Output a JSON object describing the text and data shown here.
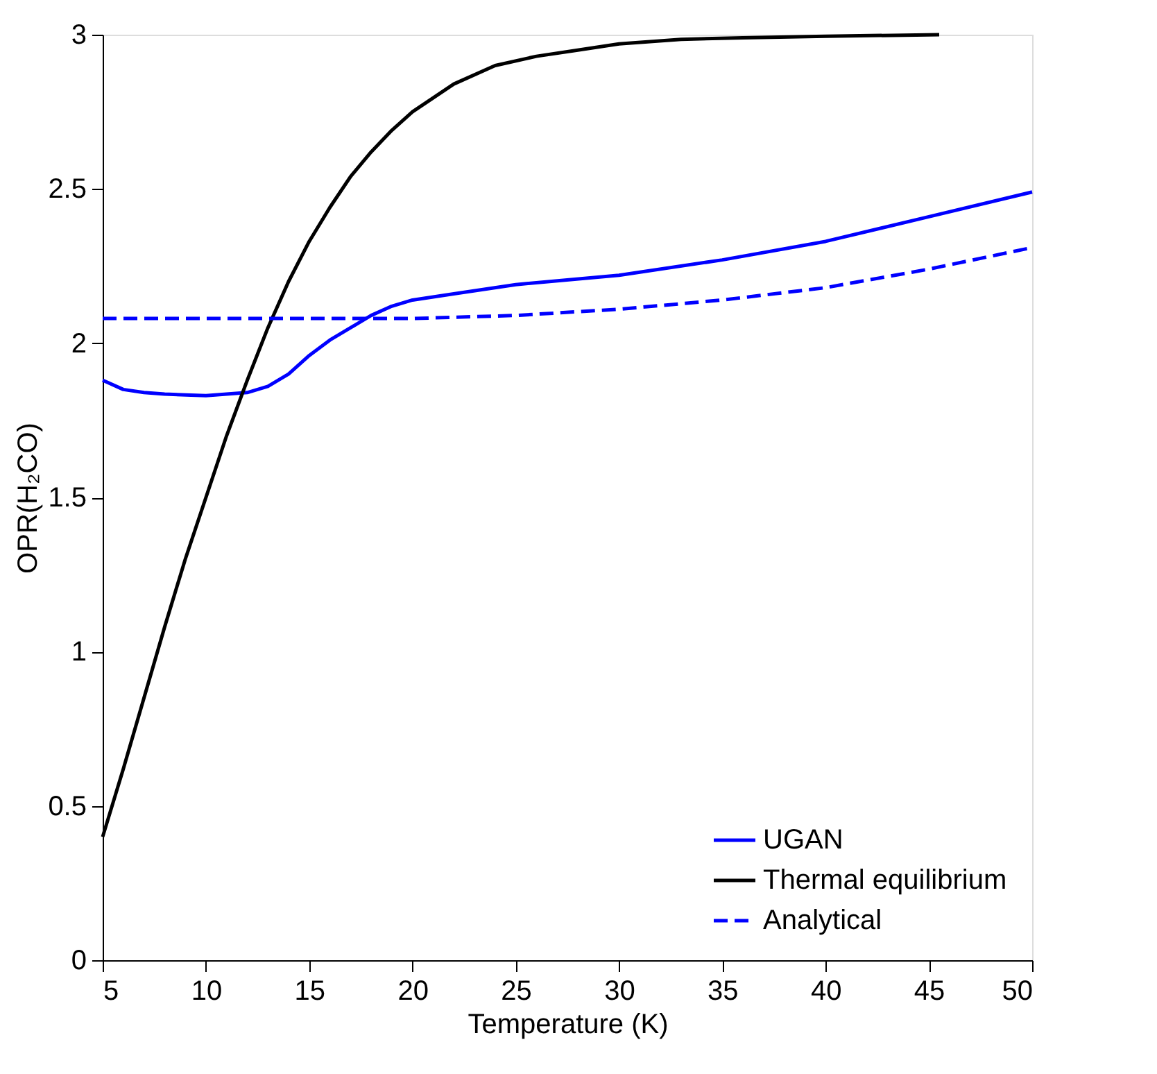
{
  "chart_data": {
    "type": "line",
    "xlabel": "Temperature (K)",
    "ylabel": "OPR(H₂CO)",
    "xlim": [
      5,
      50
    ],
    "xticks": [
      5,
      10,
      15,
      20,
      25,
      30,
      35,
      40,
      45,
      50
    ],
    "ylim": [
      0,
      3
    ],
    "yticks": [
      0,
      0.5,
      1,
      1.5,
      2,
      2.5,
      3
    ],
    "grid": false,
    "legend": "bottom right",
    "marker": "none",
    "series": [
      {
        "name": "UGAN",
        "color": "#0000ff",
        "line_style": "solid",
        "x": [
          5,
          6,
          7,
          8,
          10,
          12,
          13,
          14,
          15,
          16,
          17,
          18,
          19,
          20,
          22,
          25,
          30,
          35,
          40,
          45,
          50
        ],
        "values": [
          1.88,
          1.85,
          1.84,
          1.835,
          1.83,
          1.84,
          1.86,
          1.9,
          1.96,
          2.01,
          2.05,
          2.09,
          2.12,
          2.14,
          2.16,
          2.19,
          2.22,
          2.27,
          2.33,
          2.41,
          2.49
        ]
      },
      {
        "name": "Thermal equilibrium",
        "color": "#000000",
        "line_style": "solid",
        "x": [
          5,
          6,
          7,
          8,
          9,
          10,
          11,
          12,
          13,
          14,
          15,
          16,
          17,
          18,
          19,
          20,
          22,
          24,
          26,
          28,
          30,
          33,
          36,
          40,
          45.5
        ],
        "values": [
          0.4,
          0.62,
          0.85,
          1.08,
          1.3,
          1.5,
          1.7,
          1.88,
          2.05,
          2.2,
          2.33,
          2.44,
          2.54,
          2.62,
          2.69,
          2.75,
          2.84,
          2.9,
          2.93,
          2.95,
          2.97,
          2.985,
          2.99,
          2.995,
          3.0
        ]
      },
      {
        "name": "Analytical",
        "color": "#0000ff",
        "line_style": "dashed",
        "x": [
          5,
          10,
          15,
          20,
          25,
          30,
          35,
          40,
          45,
          50
        ],
        "values": [
          2.08,
          2.08,
          2.08,
          2.08,
          2.09,
          2.11,
          2.14,
          2.18,
          2.24,
          2.31
        ]
      }
    ]
  }
}
